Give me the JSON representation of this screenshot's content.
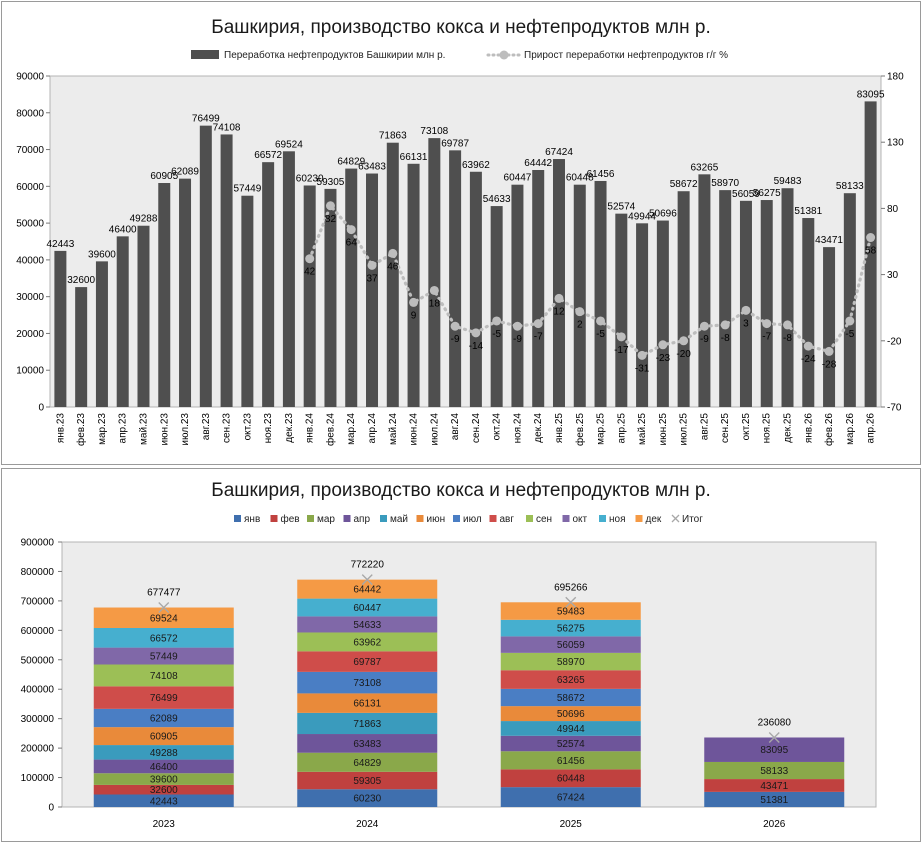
{
  "colors": {
    "bar1": "#4f4f4f",
    "plot_bg": "#ececec",
    "line": "#bdbdbd",
    "months": [
      "#3f6fae",
      "#c0413f",
      "#8aa84a",
      "#6e559a",
      "#3a9bbd",
      "#e98a3a",
      "#4a7ec4",
      "#cf4d4a",
      "#9cbf56",
      "#8068a8",
      "#46afcf",
      "#f59a45"
    ]
  },
  "chart_data": [
    {
      "type": "bar",
      "title": "Башкирия, производство кокса и нефтепродуктов млн р.",
      "categories": [
        "янв.23",
        "фев.23",
        "мар.23",
        "апр.23",
        "май.23",
        "июн.23",
        "июл.23",
        "авг.23",
        "сен.23",
        "окт.23",
        "ноя.23",
        "дек.23",
        "янв.24",
        "фев.24",
        "мар.24",
        "апр.24",
        "май.24",
        "июн.24",
        "июл.24",
        "авг.24",
        "сен.24",
        "окт.24",
        "ноя.24",
        "дек.24",
        "янв.25",
        "фев.25",
        "мар.25",
        "апр.25",
        "май.25",
        "июн.25",
        "июл.25",
        "авг.25",
        "сен.25",
        "окт.25",
        "ноя.25",
        "дек.25",
        "янв.26",
        "фев.26",
        "мар.26",
        "апр.26"
      ],
      "series": [
        {
          "name": "Переработка нефтепродуктов Башкирии млн р.",
          "type": "bar",
          "axis": "left",
          "values": [
            42443,
            32600,
            39600,
            46400,
            49288,
            60905,
            62089,
            76499,
            74108,
            57449,
            66572,
            69524,
            60230,
            59305,
            64829,
            63483,
            71863,
            66131,
            73108,
            69787,
            63962,
            54633,
            60447,
            64442,
            67424,
            60448,
            61456,
            52574,
            49944,
            50696,
            58672,
            63265,
            58970,
            56059,
            56275,
            59483,
            51381,
            43471,
            58133,
            83095
          ],
          "labels": [
            "42443",
            "32600",
            "39600",
            "46400",
            "49288",
            "60905",
            "62089",
            "76499",
            "74108",
            "57449",
            "66572",
            "69524",
            "60230",
            "59305",
            "64829",
            "63483",
            "71863",
            "66131",
            "73108",
            "69787",
            "63962",
            "54633",
            "60447",
            "64442",
            "67424",
            "60448",
            "61456",
            "52574",
            "49944",
            "50696",
            "58672",
            "63265",
            "58970",
            "56059",
            "56275",
            "59483",
            "51381",
            "43471",
            "58133",
            "83095"
          ]
        },
        {
          "name": "Прирост переработки нефтепродуктов г/г  %",
          "type": "line",
          "axis": "right",
          "values": [
            null,
            null,
            null,
            null,
            null,
            null,
            null,
            null,
            null,
            null,
            null,
            null,
            42,
            82,
            64,
            37,
            46,
            9,
            18,
            -9,
            -14,
            -5,
            -9,
            -7,
            12,
            2,
            -5,
            -17,
            -31,
            -23,
            -20,
            -9,
            -8,
            3,
            -7,
            -8,
            -24,
            -28,
            -5,
            58
          ],
          "labels": [
            "",
            "",
            "",
            "",
            "",
            "",
            "",
            "",
            "",
            "",
            "",
            "",
            "42",
            "82",
            "64",
            "37",
            "46",
            "9",
            "18",
            "-9",
            "-14",
            "-5",
            "-9",
            "-7",
            "12",
            "2",
            "-5",
            "-17",
            "-31",
            "-23",
            "-20",
            "-9",
            "-8",
            "3",
            "-7",
            "-8",
            "-24",
            "-28",
            "-5",
            "58"
          ]
        }
      ],
      "yleft": {
        "min": 0,
        "max": 90000,
        "step": 10000,
        "ticks": [
          "0",
          "10000",
          "20000",
          "30000",
          "40000",
          "50000",
          "60000",
          "70000",
          "80000",
          "90000"
        ]
      },
      "yright": {
        "min": -70,
        "max": 180,
        "step": 50,
        "ticks": [
          "-70",
          "-20",
          "30",
          "80",
          "130",
          "180"
        ]
      },
      "legend_position": "top",
      "grid": false
    },
    {
      "type": "bar",
      "stacked": true,
      "title": "Башкирия, производство кокса и нефтепродуктов млн р.",
      "categories": [
        "2023",
        "2024",
        "2025",
        "2026"
      ],
      "series": [
        {
          "name": "янв",
          "values": [
            42443,
            60230,
            67424,
            51381
          ],
          "labels": [
            "42443",
            "60230",
            "67424",
            "51381"
          ]
        },
        {
          "name": "фев",
          "values": [
            32600,
            59305,
            60448,
            43471
          ],
          "labels": [
            "32600",
            "59305",
            "60448",
            "43471"
          ]
        },
        {
          "name": "мар",
          "values": [
            39600,
            64829,
            61456,
            58133
          ],
          "labels": [
            "39600",
            "64829",
            "61456",
            "58133"
          ]
        },
        {
          "name": "апр",
          "values": [
            46400,
            63483,
            52574,
            83095
          ],
          "labels": [
            "46400",
            "63483",
            "52574",
            "83095"
          ]
        },
        {
          "name": "май",
          "values": [
            49288,
            71863,
            49944,
            null
          ],
          "labels": [
            "49288",
            "71863",
            "49944",
            ""
          ]
        },
        {
          "name": "июн",
          "values": [
            60905,
            66131,
            50696,
            null
          ],
          "labels": [
            "60905",
            "66131",
            "50696",
            ""
          ]
        },
        {
          "name": "июл",
          "values": [
            62089,
            73108,
            58672,
            null
          ],
          "labels": [
            "62089",
            "73108",
            "58672",
            ""
          ]
        },
        {
          "name": "авг",
          "values": [
            76499,
            69787,
            63265,
            null
          ],
          "labels": [
            "76499",
            "69787",
            "63265",
            ""
          ]
        },
        {
          "name": "сен",
          "values": [
            74108,
            63962,
            58970,
            null
          ],
          "labels": [
            "74108",
            "63962",
            "58970",
            ""
          ]
        },
        {
          "name": "окт",
          "values": [
            57449,
            54633,
            56059,
            null
          ],
          "labels": [
            "57449",
            "54633",
            "56059",
            ""
          ]
        },
        {
          "name": "ноя",
          "values": [
            66572,
            60447,
            56275,
            null
          ],
          "labels": [
            "66572",
            "60447",
            "56275",
            ""
          ]
        },
        {
          "name": "дек",
          "values": [
            69524,
            64442,
            59483,
            null
          ],
          "labels": [
            "69524",
            "64442",
            "59483",
            ""
          ]
        }
      ],
      "totals": {
        "name": "Итог",
        "values": [
          677477,
          772220,
          695266,
          236080
        ],
        "labels": [
          "677477",
          "772220",
          "695266",
          "236080"
        ]
      },
      "y": {
        "min": 0,
        "max": 900000,
        "step": 100000,
        "ticks": [
          "0",
          "100000",
          "200000",
          "300000",
          "400000",
          "500000",
          "600000",
          "700000",
          "800000",
          "900000"
        ]
      },
      "legend_position": "top",
      "grid": false
    }
  ]
}
